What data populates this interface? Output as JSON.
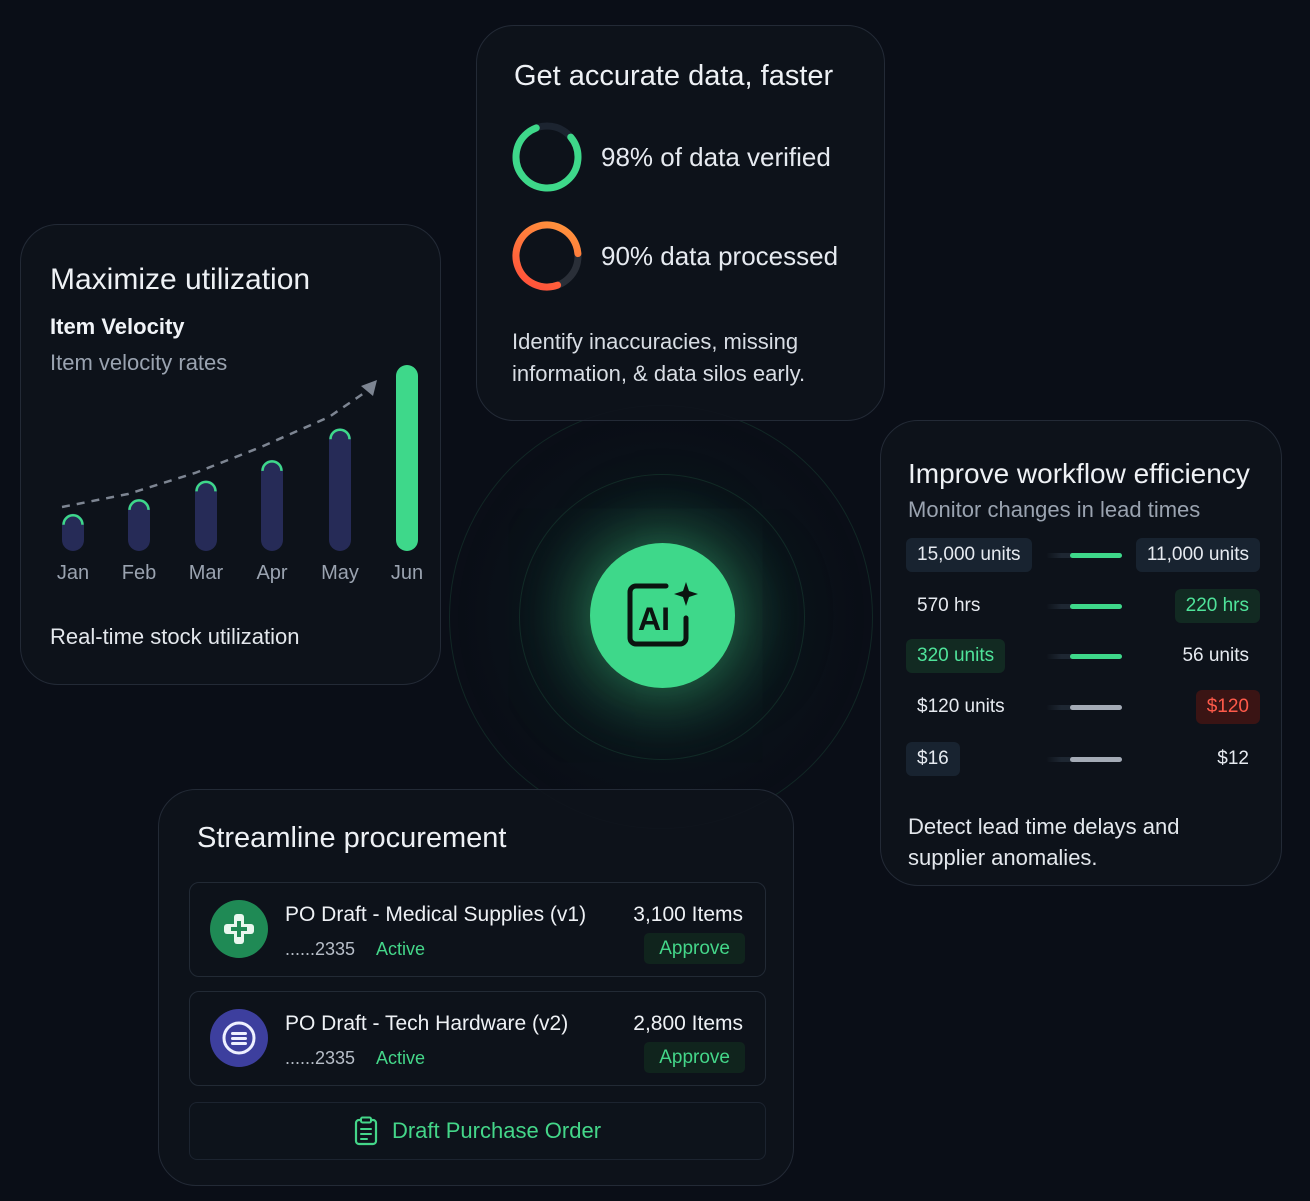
{
  "accurate": {
    "title": "Get accurate data, faster",
    "verified": {
      "label": "98% of data verified",
      "value": 0.98,
      "color": "#3ed88a"
    },
    "processed": {
      "label": "90% data processed",
      "value": 0.9,
      "color": "#ff6a3d"
    },
    "description": "Identify inaccuracies, missing information, & data silos early."
  },
  "utilization": {
    "title": "Maximize utilization",
    "subtitle": "Item Velocity",
    "caption": "Item velocity rates",
    "footer": "Real-time stock utilization",
    "chart_data": {
      "type": "bar",
      "categories": [
        "Jan",
        "Feb",
        "Mar",
        "Apr",
        "May",
        "Jun"
      ],
      "values": [
        20,
        28,
        38,
        49,
        66,
        100
      ],
      "highlight_index": 5,
      "trend_line": true
    }
  },
  "ai": {
    "icon": "ai-sparkle-icon",
    "label": "AI"
  },
  "workflow": {
    "title": "Improve workflow efficiency",
    "subtitle": "Monitor changes in lead times",
    "rows": [
      {
        "left": "15,000 units",
        "right": "11,000 units",
        "trend": "green"
      },
      {
        "left": "570 hrs",
        "right": "220 hrs",
        "trend": "green"
      },
      {
        "left": "320 units",
        "right": "56 units",
        "trend": "green"
      },
      {
        "left": "$120 units",
        "right": "$120",
        "trend": "gray"
      },
      {
        "left": "$16",
        "right": "$12",
        "trend": "gray"
      }
    ],
    "footer": "Detect lead time delays and supplier anomalies."
  },
  "procurement": {
    "title": "Streamline procurement",
    "orders": [
      {
        "name": "PO Draft - Medical Supplies (v1)",
        "account": "......2335",
        "status": "Active",
        "count": "3,100 Items",
        "action": "Approve",
        "icon": "medical-cross-icon",
        "color": "#1f8a55"
      },
      {
        "name": "PO Draft - Tech Hardware (v2)",
        "account": "......2335",
        "status": "Active",
        "count": "2,800 Items",
        "action": "Approve",
        "icon": "tech-lines-icon",
        "color": "#3d3f9e"
      }
    ],
    "draft_button": "Draft Purchase Order"
  }
}
